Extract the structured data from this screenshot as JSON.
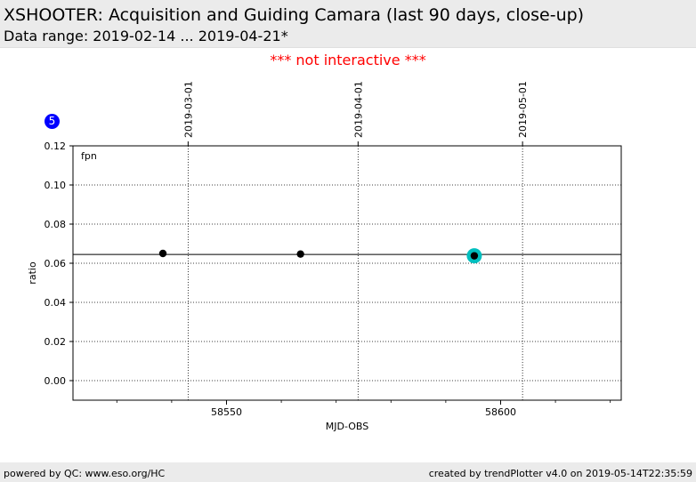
{
  "header": {
    "title": "XSHOOTER: Acquisition and Guiding Camara (last 90 days, close-up)",
    "subtitle": "Data range: 2019-02-14 ... 2019-04-21*"
  },
  "notice": "*** not interactive ***",
  "badge": "5",
  "footer": {
    "left": "powered by QC: www.eso.org/HC",
    "right": "created by trendPlotter v4.0 on 2019-05-14T22:35:59"
  },
  "colors": {
    "notice": "#ff0000",
    "badge": "#0000ff",
    "points": "#000000",
    "highlight": "#00bfbf"
  },
  "chart_data": {
    "type": "scatter",
    "panel_label": "fpn",
    "xlabel": "MJD-OBS",
    "ylabel": "ratio",
    "xlim": [
      58522,
      58622
    ],
    "ylim": [
      -0.01,
      0.12
    ],
    "xticks": [
      58550,
      58600
    ],
    "yticks": [
      0.0,
      0.02,
      0.04,
      0.06,
      0.08,
      0.1,
      0.12
    ],
    "ytick_labels": [
      "0.00",
      "0.02",
      "0.04",
      "0.06",
      "0.08",
      "0.10",
      "0.12"
    ],
    "top_date_ticks": [
      {
        "mjd": 58543,
        "label": "2019-03-01"
      },
      {
        "mjd": 58574,
        "label": "2019-04-01"
      },
      {
        "mjd": 58604,
        "label": "2019-05-01"
      }
    ],
    "reference_line": 0.0645,
    "grid": true,
    "points": [
      {
        "x": 58538.4,
        "y": 0.065
      },
      {
        "x": 58563.5,
        "y": 0.0647
      },
      {
        "x": 58595.2,
        "y": 0.0638
      }
    ],
    "highlight_point": {
      "x": 58595.2,
      "y": 0.0638
    }
  }
}
